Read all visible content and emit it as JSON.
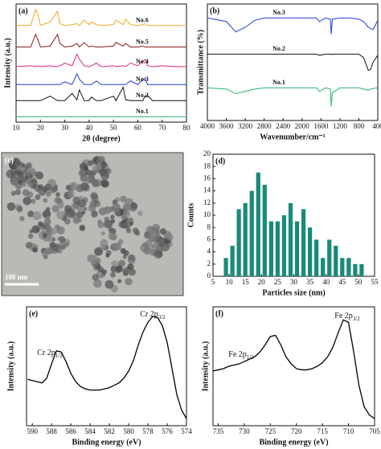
{
  "chart_data": [
    {
      "type": "line",
      "label": "(a)",
      "xlabel": "2θ (degree)",
      "ylabel": "Intensity (a.u.)",
      "xlim": [
        10,
        80
      ],
      "xticks": [
        10,
        20,
        30,
        40,
        50,
        60,
        70,
        80
      ],
      "ylim": [
        0,
        6.6
      ],
      "x": [
        10,
        16,
        18,
        19,
        20,
        24,
        27,
        28,
        30,
        33,
        35,
        36,
        38,
        40,
        41,
        43,
        45,
        50,
        51,
        54,
        55,
        57,
        60,
        62,
        63,
        64,
        66,
        70,
        75,
        80
      ],
      "series": [
        {
          "name": "No.1",
          "color": "#2bb36a",
          "values": [
            0.3,
            0.3,
            0.3,
            0.3,
            0.3,
            0.3,
            0.3,
            0.3,
            0.3,
            0.3,
            0.3,
            0.3,
            0.3,
            0.3,
            0.3,
            0.3,
            0.3,
            0.3,
            0.3,
            0.3,
            0.3,
            0.3,
            0.3,
            0.3,
            0.3,
            0.3,
            0.3,
            0.3,
            0.3,
            0.3
          ]
        },
        {
          "name": "No.2",
          "color": "#111111",
          "values": [
            1.2,
            1.2,
            1.2,
            1.2,
            1.2,
            1.45,
            1.2,
            1.2,
            1.2,
            1.6,
            1.25,
            1.8,
            1.2,
            1.2,
            1.4,
            1.2,
            1.2,
            1.45,
            1.2,
            1.95,
            1.25,
            1.2,
            1.2,
            1.2,
            1.45,
            1.5,
            1.2,
            1.2,
            1.2,
            1.2
          ]
        },
        {
          "name": "No.3",
          "color": "#1f3fd6",
          "values": [
            2.1,
            2.1,
            2.1,
            2.1,
            2.1,
            2.1,
            2.1,
            2.1,
            2.25,
            2.1,
            2.7,
            2.4,
            2.1,
            2.1,
            2.1,
            2.3,
            2.1,
            2.1,
            2.1,
            2.1,
            2.1,
            2.3,
            2.1,
            2.35,
            2.45,
            2.1,
            2.1,
            2.1,
            2.1,
            2.1
          ]
        },
        {
          "name": "No.4",
          "color": "#e0267f",
          "values": [
            3.1,
            3.15,
            3.1,
            3.15,
            3.1,
            3.15,
            3.1,
            3.15,
            3.3,
            3.15,
            3.8,
            3.5,
            3.15,
            3.1,
            3.15,
            3.3,
            3.1,
            3.15,
            3.1,
            3.15,
            3.1,
            3.3,
            3.15,
            3.4,
            3.5,
            3.15,
            3.1,
            3.15,
            3.1,
            3.1
          ]
        },
        {
          "name": "No.5",
          "color": "#8b1a1a",
          "values": [
            4.2,
            4.2,
            4.9,
            4.6,
            4.2,
            4.25,
            4.9,
            4.4,
            4.2,
            4.25,
            4.4,
            4.2,
            4.45,
            4.2,
            4.25,
            4.2,
            4.2,
            4.25,
            4.45,
            4.25,
            4.4,
            4.2,
            4.2,
            4.25,
            4.2,
            4.2,
            4.2,
            4.2,
            4.2,
            4.2
          ]
        },
        {
          "name": "No.6",
          "color": "#f5a623",
          "values": [
            5.4,
            5.4,
            6.3,
            6.0,
            5.4,
            5.6,
            6.2,
            5.5,
            5.4,
            5.45,
            5.5,
            5.4,
            5.7,
            5.45,
            5.6,
            5.45,
            5.4,
            5.45,
            5.7,
            5.45,
            5.75,
            5.45,
            5.4,
            5.45,
            5.5,
            5.4,
            5.4,
            5.4,
            5.4,
            5.4
          ]
        }
      ]
    },
    {
      "type": "line",
      "label": "(b)",
      "xlabel": "Wavenumber/cm⁻¹",
      "ylabel": "Transmittance (%)",
      "xlim": [
        4000,
        400
      ],
      "xticks": [
        4000,
        3600,
        3200,
        2800,
        2400,
        2000,
        1600,
        1200,
        800,
        400
      ],
      "ylim": [
        0,
        10
      ],
      "x": [
        4000,
        3600,
        3400,
        3200,
        3000,
        2800,
        2400,
        2000,
        1700,
        1630,
        1500,
        1400,
        1384,
        1360,
        1200,
        1000,
        800,
        700,
        600,
        550,
        500,
        400
      ],
      "series": [
        {
          "name": "No.3",
          "color": "#1f3fd6",
          "values": [
            8.8,
            8.5,
            7.6,
            8.0,
            8.6,
            8.8,
            8.8,
            8.8,
            8.8,
            8.5,
            8.8,
            8.7,
            7.4,
            8.7,
            8.8,
            8.8,
            8.7,
            8.5,
            8.0,
            7.9,
            7.8,
            8.6
          ]
        },
        {
          "name": "No.2",
          "color": "#111111",
          "values": [
            5.7,
            5.7,
            5.7,
            5.7,
            5.7,
            5.7,
            5.7,
            5.7,
            5.7,
            5.6,
            5.7,
            5.7,
            5.65,
            5.7,
            5.7,
            5.7,
            5.7,
            5.4,
            4.3,
            4.4,
            5.0,
            5.6
          ]
        },
        {
          "name": "No.1",
          "color": "#2bb36a",
          "values": [
            2.8,
            2.7,
            2.3,
            2.5,
            2.7,
            2.8,
            2.8,
            2.8,
            2.8,
            2.5,
            2.8,
            2.7,
            1.2,
            2.4,
            2.8,
            2.8,
            2.8,
            2.7,
            2.6,
            2.7,
            2.75,
            2.8
          ]
        }
      ]
    },
    {
      "type": "image",
      "label": "(c)",
      "scale_bar": "100 nm"
    },
    {
      "type": "bar",
      "label": "(d)",
      "xlabel": "Particles size (nm)",
      "ylabel": "Counts",
      "color": "#1a8a7a",
      "xlim": [
        5,
        55
      ],
      "xticks": [
        5,
        10,
        15,
        20,
        25,
        30,
        35,
        40,
        45,
        50,
        55
      ],
      "ylim": [
        0,
        20
      ],
      "yticks": [
        0,
        2,
        4,
        6,
        8,
        10,
        12,
        14,
        16,
        18,
        20
      ],
      "x": [
        9,
        11,
        13,
        15,
        17,
        19,
        21,
        23,
        25,
        27,
        29,
        31,
        33,
        35,
        37,
        39,
        41,
        43,
        45,
        47,
        49,
        51
      ],
      "values": [
        3,
        5,
        11,
        12,
        14,
        17,
        15,
        9,
        9,
        10,
        12,
        9,
        11,
        8,
        6,
        3,
        6,
        5,
        3,
        3,
        2,
        2
      ]
    },
    {
      "type": "line",
      "label": "(e)",
      "xlabel": "Binding energy (eV)",
      "ylabel": "Intensity (a.u.)",
      "xlim": [
        590.6,
        574
      ],
      "xticks": [
        590,
        588,
        586,
        584,
        582,
        580,
        578,
        576,
        574
      ],
      "ylim": [
        0,
        10
      ],
      "annotations": [
        {
          "text": "Cr 2p",
          "sub": "1/2"
        },
        {
          "text": "Cr 2p",
          "sub": "3/2"
        }
      ],
      "x": [
        590.5,
        590,
        589.5,
        589,
        588.5,
        588,
        587.5,
        587,
        586.5,
        586,
        585.5,
        585,
        584.5,
        584,
        583.5,
        583,
        582.5,
        582,
        581.5,
        581,
        580.5,
        580,
        579.5,
        579,
        578.5,
        578,
        577.5,
        577,
        576.5,
        576,
        575.5,
        575,
        574.5,
        574
      ],
      "values": [
        3.9,
        3.8,
        3.7,
        3.6,
        4.0,
        5.2,
        6.3,
        6.2,
        5.4,
        4.4,
        3.7,
        3.3,
        3.1,
        3.0,
        3.0,
        3.0,
        3.1,
        3.2,
        3.4,
        3.6,
        4.0,
        4.6,
        5.5,
        6.8,
        7.9,
        8.7,
        9.2,
        9.1,
        8.4,
        7.0,
        4.8,
        2.6,
        1.3,
        0.6
      ]
    },
    {
      "type": "line",
      "label": "(f)",
      "xlabel": "Binding energy (eV)",
      "ylabel": "Intensity (a.u.)",
      "xlim": [
        736,
        705
      ],
      "xticks": [
        735,
        730,
        725,
        720,
        715,
        710,
        705
      ],
      "ylim": [
        0,
        10
      ],
      "annotations": [
        {
          "text": "Fe 2p",
          "sub": "1/2"
        },
        {
          "text": "Fe 2p",
          "sub": "3/2"
        }
      ],
      "x": [
        736,
        735,
        734,
        733,
        732,
        731,
        730,
        729,
        728,
        727,
        726,
        725,
        724,
        723,
        722,
        721,
        720,
        719,
        718,
        717,
        716,
        715,
        714,
        713,
        712,
        711,
        710,
        709,
        708,
        707,
        706,
        705
      ],
      "values": [
        4.6,
        4.7,
        4.8,
        5.0,
        5.1,
        5.2,
        5.4,
        5.6,
        5.8,
        6.2,
        6.8,
        7.5,
        7.6,
        6.8,
        5.8,
        5.2,
        4.8,
        4.7,
        4.7,
        4.8,
        5.0,
        5.3,
        5.8,
        6.6,
        7.8,
        8.9,
        8.7,
        6.2,
        3.4,
        1.6,
        0.9,
        0.6
      ]
    }
  ]
}
